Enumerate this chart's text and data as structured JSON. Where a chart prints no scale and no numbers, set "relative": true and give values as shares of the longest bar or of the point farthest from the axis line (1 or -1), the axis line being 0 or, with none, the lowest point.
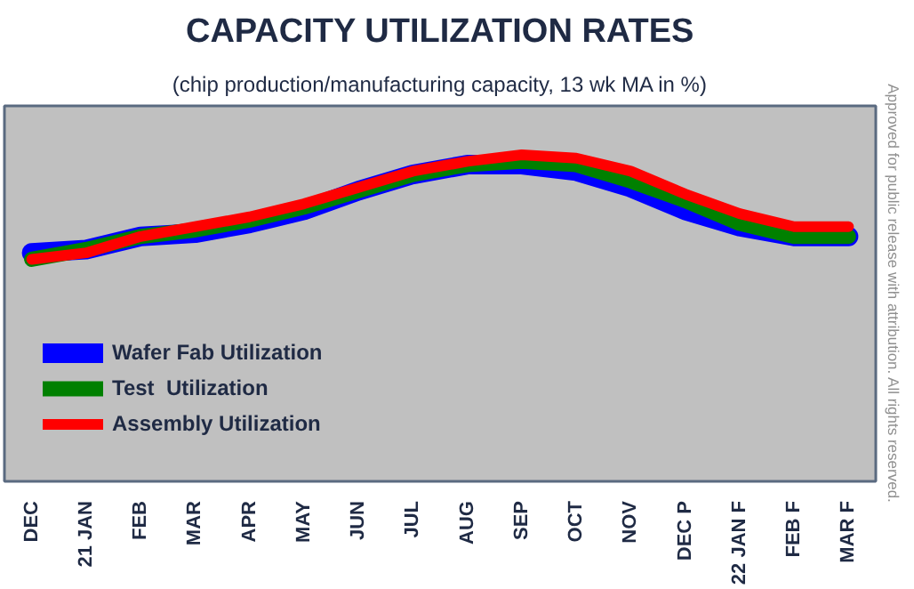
{
  "chart_data": {
    "type": "line",
    "title": "CAPACITY UTILIZATION RATES",
    "subtitle": "(chip production/manufacturing capacity, 13 wk MA in %)",
    "categories": [
      "DEC",
      "21 JAN",
      "FEB",
      "MAR",
      "APR",
      "MAY",
      "JUN",
      "JUL",
      "AUG",
      "SEP",
      "OCT",
      "NOV",
      "DEC P",
      "22 JAN F",
      "FEB F",
      "MAR F"
    ],
    "relative": true,
    "series": [
      {
        "name": "Wafer Fab Utilization",
        "color": "#0000ff",
        "values": [
          0.7,
          0.71,
          0.75,
          0.76,
          0.79,
          0.83,
          0.89,
          0.94,
          0.97,
          0.97,
          0.95,
          0.9,
          0.83,
          0.78,
          0.75,
          0.75
        ]
      },
      {
        "name": "Test  Utilization",
        "color": "#008000",
        "values": [
          0.68,
          0.71,
          0.75,
          0.77,
          0.8,
          0.84,
          0.89,
          0.94,
          0.97,
          0.98,
          0.97,
          0.92,
          0.86,
          0.79,
          0.75,
          0.75
        ]
      },
      {
        "name": "Assembly Utilization",
        "color": "#ff0000",
        "values": [
          0.68,
          0.7,
          0.75,
          0.78,
          0.81,
          0.85,
          0.9,
          0.95,
          0.98,
          1.0,
          0.99,
          0.95,
          0.88,
          0.82,
          0.78,
          0.78
        ]
      }
    ],
    "legend": "bottom left",
    "annotations": [
      "Approved for public release with attribution. All rights reserved."
    ]
  }
}
